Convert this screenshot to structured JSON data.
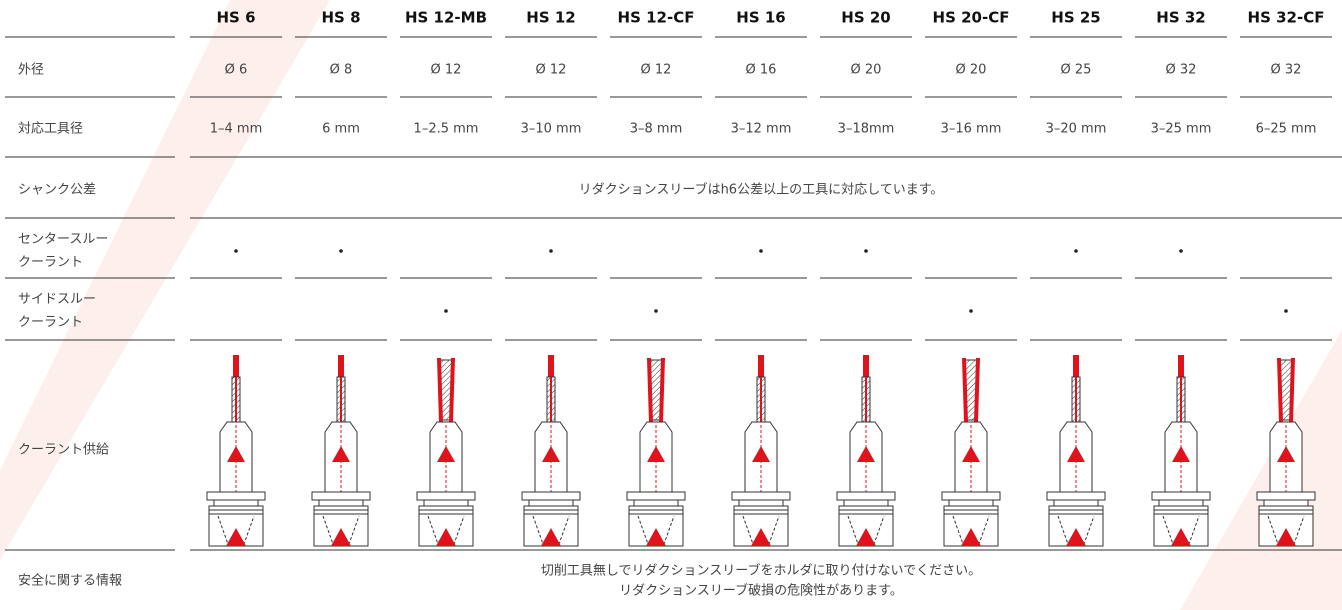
{
  "header": {
    "columns": [
      "HS 6",
      "HS 8",
      "HS 12-MB",
      "HS 12",
      "HS 12-CF",
      "HS 16",
      "HS 20",
      "HS 20-CF",
      "HS 25",
      "HS 32",
      "HS 32-CF"
    ]
  },
  "rows": [
    {
      "label": [
        "外径"
      ],
      "values": [
        "Ø 6",
        "Ø 8",
        "Ø 12",
        "Ø 12",
        "Ø 12",
        "Ø 16",
        "Ø 20",
        "Ø 20",
        "Ø 25",
        "Ø 32",
        "Ø 32"
      ]
    },
    {
      "label": [
        "対応工具径"
      ],
      "values": [
        "1–4 mm",
        "6 mm",
        "1–2.5 mm",
        "3–10 mm",
        "3–8 mm",
        "3–12 mm",
        "3–18mm",
        "3–16 mm",
        "3–20 mm",
        "3–25 mm",
        "6–25 mm"
      ]
    },
    {
      "label": [
        "シャンク公差"
      ],
      "text": [
        "リダクションスリーブはh6公差以上の工具に対応しています。"
      ]
    },
    {
      "label": [
        "センタースルー",
        "クーラント"
      ],
      "flags": [
        true,
        true,
        false,
        true,
        false,
        true,
        true,
        false,
        true,
        true,
        false
      ]
    },
    {
      "label": [
        "サイドスルー",
        "クーラント"
      ],
      "flags": [
        false,
        false,
        true,
        false,
        true,
        false,
        false,
        true,
        false,
        false,
        true
      ]
    },
    {
      "label": [
        "クーラント供給"
      ]
    },
    {
      "label": [
        "安全に関する情報"
      ],
      "text": [
        "切削工具無しでリダクションスリーブをホルダに取り付けないでください。",
        "リダクションスリーブ破損の危険性があります。"
      ]
    }
  ]
}
